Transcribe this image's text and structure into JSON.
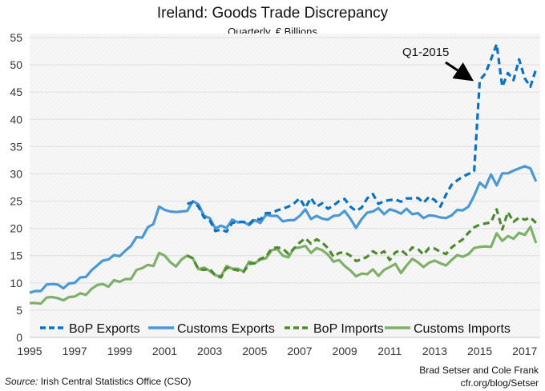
{
  "chart_data": {
    "type": "line",
    "title": "Ireland: Goods Trade Discrepancy",
    "subtitle": "Quarterly, € Billions",
    "xlabel": "",
    "ylabel": "",
    "ylim": [
      0,
      55
    ],
    "yticks": [
      0,
      5,
      10,
      15,
      20,
      25,
      30,
      35,
      40,
      45,
      50,
      55
    ],
    "xticks": [
      "1995",
      "1997",
      "1999",
      "2001",
      "2003",
      "2005",
      "2007",
      "2009",
      "2011",
      "2013",
      "2015",
      "2017"
    ],
    "x_start": "1995-Q1",
    "x_end": "2017-Q3",
    "frequency": "quarterly",
    "grid": true,
    "legend": "bottom",
    "annotation": {
      "text": "Q1-2015",
      "target": "2015-Q1"
    },
    "series": [
      {
        "name": "BoP Exports",
        "color": "#0a72c4",
        "dashed": true,
        "start": "2002-Q1",
        "values": [
          24.5,
          24.8,
          24.0,
          22.0,
          21.5,
          19.5,
          19.8,
          19.4,
          21.0,
          21.2,
          21.2,
          20.8,
          21.8,
          21.6,
          22.8,
          22.8,
          23.3,
          23.6,
          24.0,
          24.6,
          25.5,
          23.8,
          25.6,
          24.0,
          24.6,
          23.6,
          24.2,
          25.0,
          25.4,
          24.0,
          23.2,
          23.8,
          25.5,
          26.3,
          24.5,
          25.0,
          25.2,
          25.3,
          24.9,
          25.5,
          25.5,
          25.6,
          24.7,
          25.8,
          25.2,
          24.0,
          26.2,
          28.0,
          28.8,
          29.5,
          30.0,
          30.5,
          47.2,
          48.4,
          51.0,
          53.8,
          46.0,
          48.5,
          47.2,
          51.0,
          47.5,
          46.0,
          49.2
        ]
      },
      {
        "name": "Customs Exports",
        "color": "#4a98d6",
        "dashed": false,
        "start": "1995-Q1",
        "values": [
          8.2,
          8.5,
          8.5,
          9.7,
          9.8,
          9.7,
          9.0,
          9.9,
          10.0,
          11.0,
          11.1,
          12.3,
          13.2,
          14.1,
          14.3,
          15.1,
          14.9,
          15.9,
          16.8,
          18.4,
          18.3,
          20.2,
          20.8,
          24.0,
          23.4,
          23.1,
          23.0,
          23.1,
          23.2,
          25.0,
          24.4,
          22.3,
          21.9,
          20.0,
          20.5,
          20.1,
          21.6,
          21.1,
          21.2,
          20.6,
          21.5,
          21.0,
          22.5,
          22.3,
          22.3,
          21.3,
          21.5,
          21.5,
          22.3,
          23.5,
          21.7,
          22.3,
          21.8,
          21.6,
          22.3,
          22.4,
          23.2,
          21.8,
          20.1,
          21.7,
          22.9,
          23.1,
          23.7,
          22.6,
          23.5,
          23.2,
          22.7,
          23.6,
          22.6,
          22.8,
          21.9,
          22.4,
          22.3,
          22.0,
          21.9,
          22.4,
          23.4,
          23.3,
          24.0,
          26.0,
          28.4,
          27.5,
          29.9,
          27.9,
          30.1,
          30.1,
          30.6,
          31.0,
          31.4,
          31.0,
          28.6
        ]
      },
      {
        "name": "BoP Imports",
        "color": "#4e8a2e",
        "dashed": true,
        "start": "2002-Q1",
        "values": [
          15.0,
          14.5,
          12.5,
          12.4,
          12.6,
          11.4,
          11.0,
          12.8,
          12.5,
          12.3,
          12.0,
          13.5,
          13.6,
          14.4,
          14.8,
          16.3,
          16.5,
          16.3,
          15.3,
          16.3,
          17.4,
          18.2,
          17.2,
          18.0,
          17.4,
          16.4,
          14.8,
          15.5,
          15.6,
          15.0,
          14.0,
          14.3,
          14.8,
          15.8,
          15.2,
          15.8,
          14.2,
          15.6,
          16.0,
          15.2,
          16.5,
          16.2,
          15.2,
          16.4,
          16.3,
          15.7,
          15.3,
          16.5,
          17.3,
          18.0,
          19.2,
          20.2,
          20.7,
          20.9,
          21.1,
          23.5,
          19.8,
          23.0,
          21.2,
          22.0,
          21.6,
          22.0,
          21.0
        ]
      },
      {
        "name": "Customs Imports",
        "color": "#7fb06a",
        "dashed": false,
        "start": "1995-Q1",
        "values": [
          6.3,
          6.3,
          6.2,
          7.3,
          7.4,
          7.2,
          6.8,
          7.4,
          7.5,
          8.1,
          7.8,
          8.9,
          9.6,
          9.8,
          9.3,
          10.5,
          10.2,
          10.7,
          10.7,
          12.4,
          12.7,
          13.3,
          13.1,
          15.5,
          15.0,
          13.8,
          13.0,
          14.3,
          15.0,
          14.5,
          12.5,
          12.8,
          12.2,
          11.4,
          11.2,
          13.1,
          12.6,
          12.6,
          12.1,
          13.9,
          13.6,
          14.3,
          14.5,
          16.0,
          16.2,
          15.0,
          14.7,
          16.4,
          16.5,
          16.8,
          15.5,
          16.4,
          16.0,
          15.2,
          13.9,
          14.2,
          13.1,
          12.3,
          11.2,
          11.7,
          11.6,
          12.5,
          11.3,
          12.4,
          12.9,
          13.5,
          11.8,
          13.2,
          14.4,
          13.8,
          12.9,
          13.7,
          14.1,
          13.6,
          13.2,
          14.2,
          15.1,
          14.8,
          15.3,
          16.4,
          16.6,
          16.7,
          16.6,
          19.1,
          17.7,
          18.6,
          18.1,
          19.2,
          18.8,
          20.3,
          17.3
        ]
      }
    ]
  },
  "footer": {
    "source_label": "Source:",
    "source_text": " Irish Central Statistics Office (CSO)",
    "credit_line1": "Brad Setser and Cole Frank",
    "credit_line2": "cfr.org/blog/Setser"
  }
}
